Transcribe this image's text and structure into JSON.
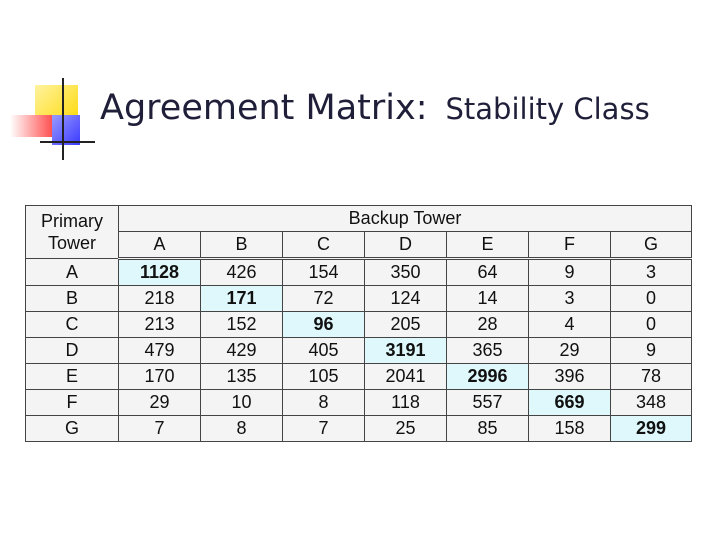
{
  "title": {
    "main": "Agreement Matrix:",
    "sub": "Stability Class"
  },
  "table": {
    "corner_label_line1": "Primary",
    "corner_label_line2": "Tower",
    "group_header": "Backup Tower",
    "columns": [
      "A",
      "B",
      "C",
      "D",
      "E",
      "F",
      "G"
    ],
    "rows": [
      {
        "label": "A",
        "values": [
          "1128",
          "426",
          "154",
          "350",
          "64",
          "9",
          "3"
        ]
      },
      {
        "label": "B",
        "values": [
          "218",
          "171",
          "72",
          "124",
          "14",
          "3",
          "0"
        ]
      },
      {
        "label": "C",
        "values": [
          "213",
          "152",
          "96",
          "205",
          "28",
          "4",
          "0"
        ]
      },
      {
        "label": "D",
        "values": [
          "479",
          "429",
          "405",
          "3191",
          "365",
          "29",
          "9"
        ]
      },
      {
        "label": "E",
        "values": [
          "170",
          "135",
          "105",
          "2041",
          "2996",
          "396",
          "78"
        ]
      },
      {
        "label": "F",
        "values": [
          "29",
          "10",
          "8",
          "118",
          "557",
          "669",
          "348"
        ]
      },
      {
        "label": "G",
        "values": [
          "7",
          "8",
          "7",
          "25",
          "85",
          "158",
          "299"
        ]
      }
    ],
    "diagonal_highlight_color": "#dff8fb"
  },
  "colors": {
    "title_text": "#1f1f3a",
    "deco_yellow": "#ffd800",
    "deco_red": "#ff3030",
    "deco_blue": "#3a3aff"
  }
}
